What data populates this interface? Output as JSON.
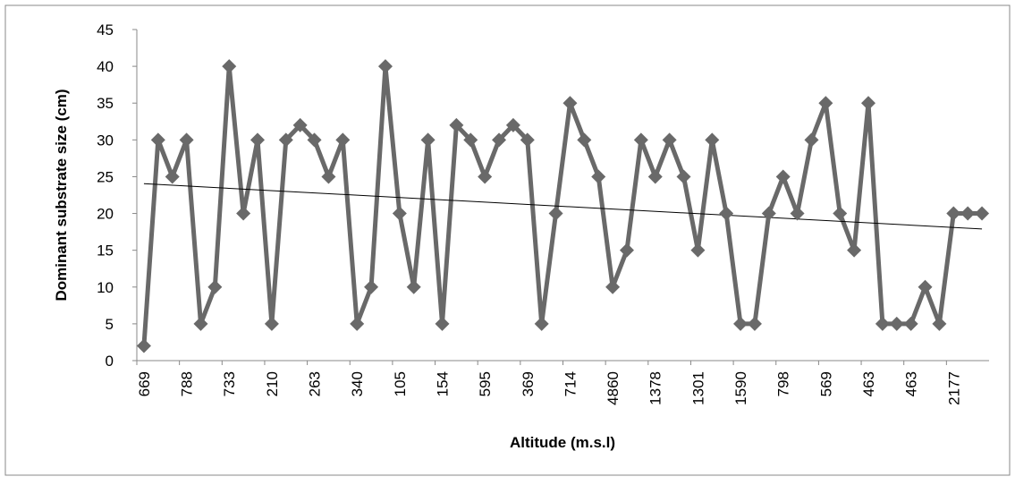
{
  "chart_data": {
    "type": "line",
    "x_label": "Altitude (m.s.l)",
    "y_label": "Dominant substrate size (cm)",
    "categories": [
      "669",
      null,
      null,
      "788",
      null,
      null,
      "733",
      null,
      null,
      "210",
      null,
      null,
      "263",
      null,
      null,
      "340",
      null,
      null,
      "105",
      null,
      null,
      "154",
      null,
      null,
      "595",
      null,
      null,
      "369",
      null,
      null,
      "714",
      null,
      null,
      "4860",
      null,
      null,
      "1378",
      null,
      null,
      "1301",
      null,
      null,
      "1590",
      null,
      null,
      "798",
      null,
      null,
      "569",
      null,
      null,
      "463",
      null,
      null,
      "463",
      null,
      null,
      "2177",
      null,
      null
    ],
    "values": [
      2,
      30,
      25,
      30,
      5,
      10,
      40,
      20,
      30,
      5,
      30,
      32,
      30,
      25,
      30,
      5,
      10,
      40,
      20,
      10,
      30,
      5,
      32,
      30,
      25,
      30,
      32,
      30,
      5,
      20,
      35,
      30,
      25,
      10,
      15,
      30,
      25,
      30,
      25,
      15,
      30,
      20,
      5,
      5,
      20,
      25,
      20,
      30,
      35,
      20,
      15,
      35,
      5,
      5,
      5,
      10,
      5,
      20,
      20,
      20
    ],
    "color": "#696969",
    "trendline": true,
    "ylim": [
      0,
      45
    ],
    "yticks": [
      0,
      5,
      10,
      15,
      20,
      25,
      30,
      35,
      40,
      45
    ]
  }
}
